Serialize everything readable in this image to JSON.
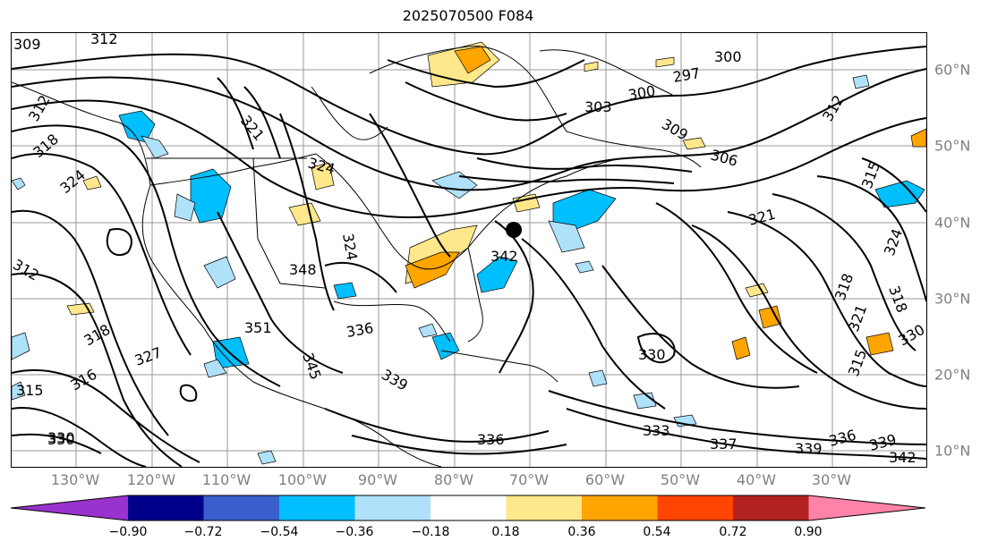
{
  "title": "2025070500 F084",
  "lon_labels": [
    "130°W",
    "120°W",
    "110°W",
    "100°W",
    "90°W",
    "80°W",
    "70°W",
    "60°W",
    "50°W",
    "40°W",
    "30°W"
  ],
  "lat_labels": [
    "60°N",
    "50°N",
    "40°N",
    "30°N",
    "20°N",
    "10°N"
  ],
  "contour_labels": [
    "309",
    "312",
    "321",
    "297",
    "300",
    "300",
    "303",
    "309",
    "306",
    "312",
    "315",
    "324",
    "318",
    "324",
    "318",
    "316",
    "315",
    "312",
    "324",
    "342",
    "348",
    "351",
    "336",
    "330",
    "345",
    "336",
    "339",
    "333",
    "330",
    "337",
    "339",
    "336",
    "339",
    "342",
    "330",
    "321",
    "318",
    "312",
    "315",
    "330",
    "318",
    "324",
    "327",
    "321"
  ],
  "colorbar": {
    "ticks": [
      "−0.90",
      "−0.72",
      "−0.54",
      "−0.36",
      "−0.18",
      "0.18",
      "0.36",
      "0.54",
      "0.72",
      "0.90"
    ],
    "colors": [
      "#9a32cd",
      "#00008b",
      "#3a5fcd",
      "#00bfff",
      "#afe1fa",
      "#ffffff",
      "#ffe78b",
      "#ffa500",
      "#ff4500",
      "#b22222",
      "#ff83a8"
    ]
  },
  "marker": {
    "name": "black-dot-marker"
  }
}
